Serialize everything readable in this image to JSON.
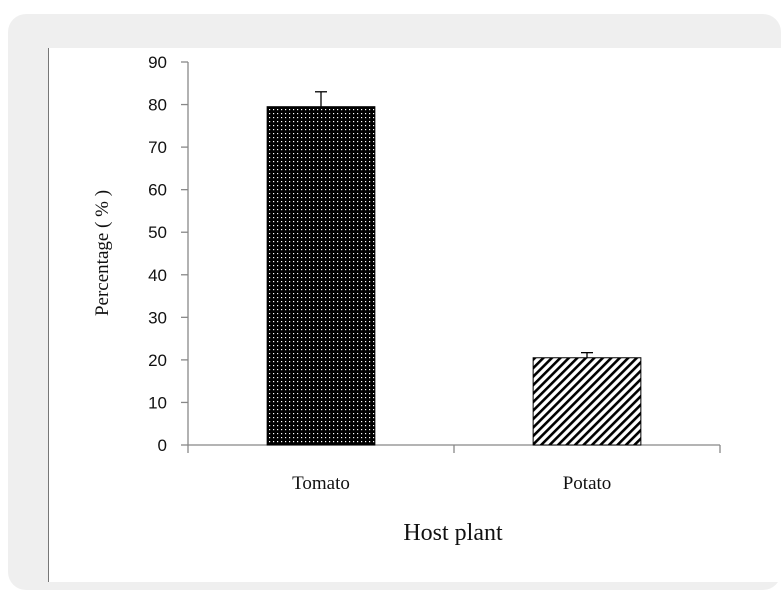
{
  "chart_data": {
    "type": "bar",
    "categories": [
      "Tomato",
      "Potato"
    ],
    "values": [
      79.5,
      20.5
    ],
    "errors": [
      3.5,
      1.2
    ],
    "title": "",
    "xlabel": "Host plant",
    "ylabel": "Percentage ( % )",
    "ylim": [
      0,
      90
    ],
    "yticks": [
      0,
      10,
      20,
      30,
      40,
      50,
      60,
      70,
      80,
      90
    ],
    "bar_patterns": [
      "dots",
      "diagonal-hatch"
    ],
    "colors": {
      "bar_fill": "#000000",
      "axis": "#888888",
      "background": "#efefef"
    },
    "grid": false,
    "legend": "none"
  }
}
